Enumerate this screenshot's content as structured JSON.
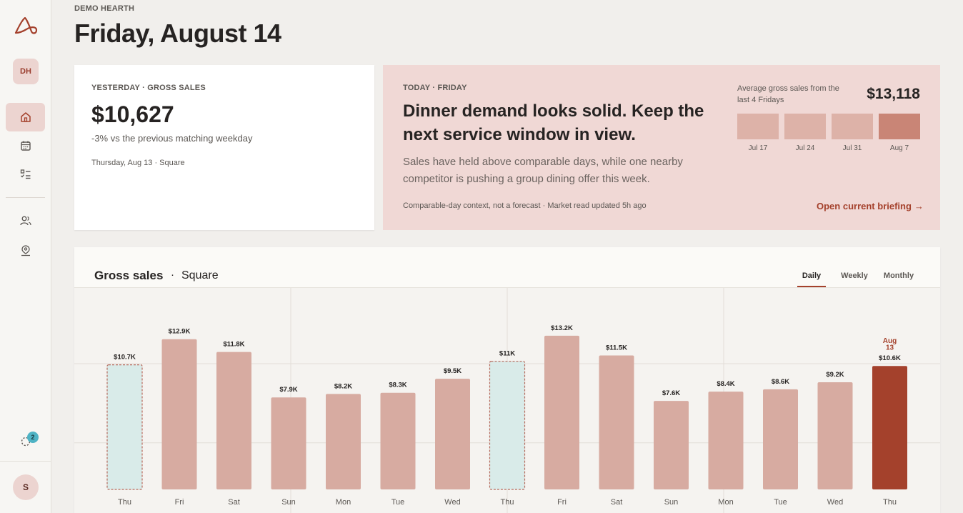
{
  "sidebar": {
    "workspace_initials": "DH",
    "sync_badge_count": "2",
    "user_initial": "S",
    "nav": [
      "home-icon",
      "calendar-icon",
      "checklist-icon",
      "users-icon",
      "location-person-icon"
    ]
  },
  "header": {
    "org_name": "DEMO HEARTH",
    "title": "Friday, August 14"
  },
  "yesterday": {
    "eyebrow": "YESTERDAY · GROSS SALES",
    "amount": "$10,627",
    "delta": "-3% vs the previous matching weekday",
    "source": "Thursday, Aug 13 · Square"
  },
  "today": {
    "eyebrow": "TODAY · FRIDAY",
    "headline": "Dinner demand looks solid. Keep the next service window in view.",
    "body": "Sales have held above comparable days, while one nearby competitor is pushing a group dining offer this week.",
    "context": "Comparable-day context, not a forecast · Market read updated 5h ago",
    "link_label": "Open current briefing",
    "avg_label": "Average gross sales from the last 4 Fridays",
    "avg_value": "$13,118",
    "mini_bars": [
      {
        "label": "Jul 17"
      },
      {
        "label": "Jul 24"
      },
      {
        "label": "Jul 31"
      },
      {
        "label": "Aug 7"
      }
    ]
  },
  "chart": {
    "title": "Gross sales",
    "dot": "·",
    "source": "Square",
    "tabs": [
      "Daily",
      "Weekly",
      "Monthly"
    ],
    "active_tab": "Daily"
  },
  "colors": {
    "accent": "#a4412c",
    "bar": "#d7aba1",
    "comparison_bar": "#d9ebe9",
    "today_card": "#f0d8d5"
  },
  "chart_data": {
    "type": "bar",
    "categories": [
      "Thu",
      "Fri",
      "Sat",
      "Sun",
      "Mon",
      "Tue",
      "Wed",
      "Thu",
      "Fri",
      "Sat",
      "Sun",
      "Mon",
      "Tue",
      "Wed",
      "Thu"
    ],
    "values": [
      10.7,
      12.9,
      11.8,
      7.9,
      8.2,
      8.3,
      9.5,
      11,
      13.2,
      11.5,
      7.6,
      8.4,
      8.6,
      9.2,
      10.6
    ],
    "value_labels": [
      "$10.7K",
      "$12.9K",
      "$11.8K",
      "$7.9K",
      "$8.2K",
      "$8.3K",
      "$9.5K",
      "$11K",
      "$13.2K",
      "$11.5K",
      "$7.6K",
      "$8.4K",
      "$8.6K",
      "$9.2K",
      "$10.6K"
    ],
    "comparison_indices": [
      0,
      7
    ],
    "highlight_index": 14,
    "highlight_label": [
      "Aug",
      "13"
    ],
    "unit": "$K",
    "ylim": [
      0,
      16
    ],
    "grid": true
  }
}
